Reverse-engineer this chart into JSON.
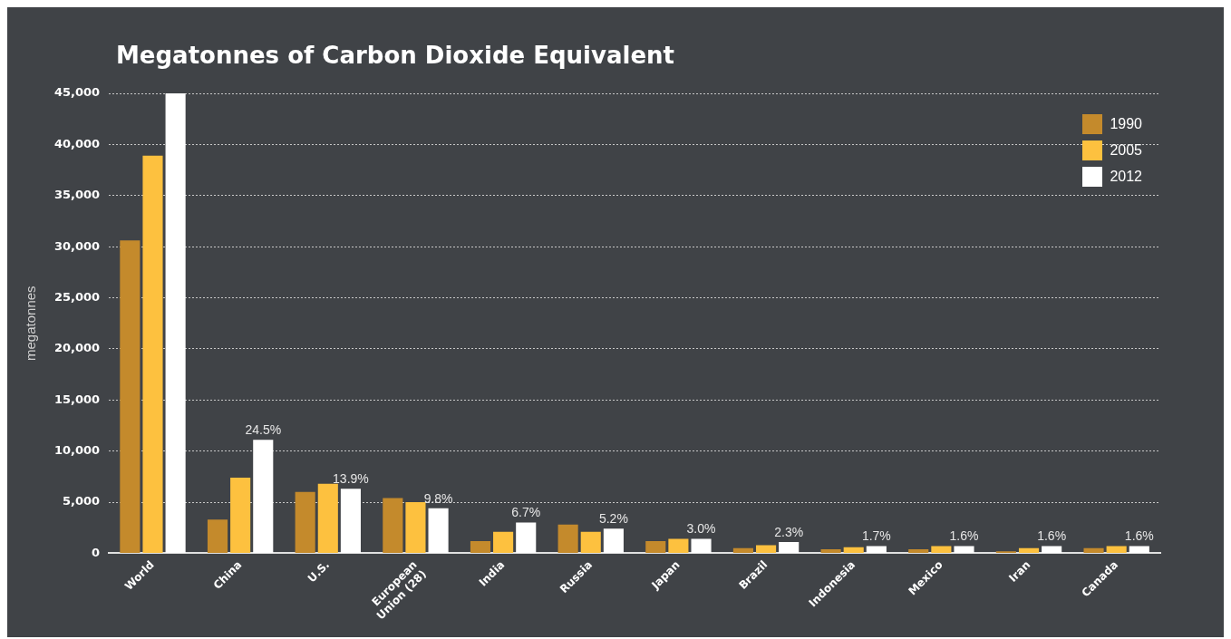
{
  "chart_data": {
    "type": "bar",
    "title": "Megatonnes of Carbon Dioxide Equivalent",
    "ylabel": "megatonnes",
    "categories": [
      "World",
      "China",
      "U.S.",
      "European Union (28)",
      "India",
      "Russia",
      "Japan",
      "Brazil",
      "Indonesia",
      "Mexico",
      "Iran",
      "Canada"
    ],
    "series": [
      {
        "name": "1990",
        "color": "#c48a2c",
        "values": [
          30600,
          3300,
          6000,
          5400,
          1200,
          2800,
          1200,
          500,
          400,
          400,
          200,
          500
        ]
      },
      {
        "name": "2005",
        "color": "#fdc13f",
        "values": [
          38900,
          7400,
          6800,
          5000,
          2100,
          2100,
          1400,
          800,
          600,
          700,
          500,
          700
        ]
      },
      {
        "name": "2012",
        "color": "#ffffff",
        "values": [
          45000,
          11100,
          6300,
          4400,
          3000,
          2400,
          1400,
          1100,
          700,
          700,
          700,
          700
        ]
      }
    ],
    "annotations": [
      "24.5%",
      "13.9%",
      "9.8%",
      "6.7%",
      "5.2%",
      "3.0%",
      "2.3%",
      "1.7%",
      "1.6%",
      "1.6%",
      "1.6%"
    ],
    "ylim": [
      0,
      45000
    ],
    "yticks": [
      {
        "value": 0,
        "label": "0"
      },
      {
        "value": 5000,
        "label": "5,000"
      },
      {
        "value": 10000,
        "label": "10,000"
      },
      {
        "value": 15000,
        "label": "15,000"
      },
      {
        "value": 20000,
        "label": "20,000"
      },
      {
        "value": 25000,
        "label": "25,000"
      },
      {
        "value": 30000,
        "label": "30,000"
      },
      {
        "value": 35000,
        "label": "35,000"
      },
      {
        "value": 40000,
        "label": "40,000"
      },
      {
        "value": 45000,
        "label": "45,000"
      }
    ],
    "grid": "y",
    "legend": "top right"
  }
}
